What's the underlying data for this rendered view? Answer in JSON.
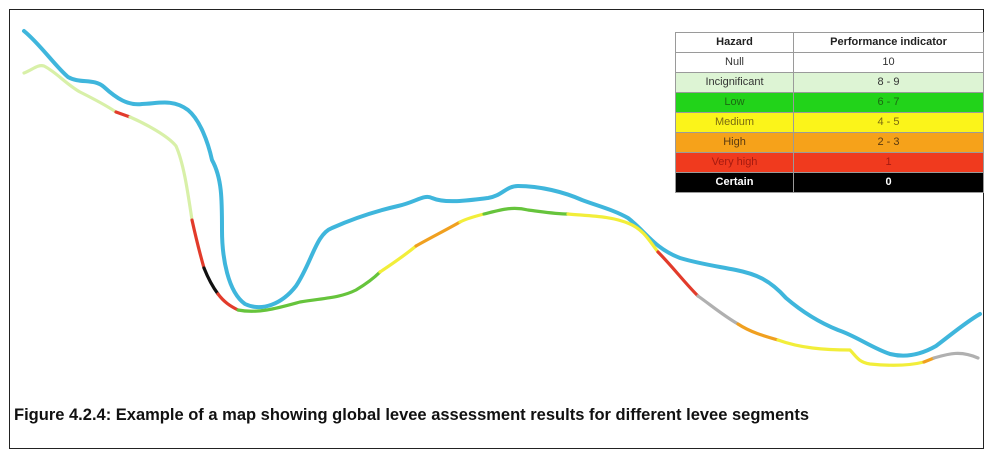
{
  "map": {
    "river_color": "#3fb6dc",
    "levee_colors": {
      "null": "#ffffff",
      "insignificant": "#d8f0a8",
      "low": "#66c43c",
      "medium": "#f2ee3a",
      "high": "#f0a020",
      "very_high": "#e23b2b",
      "certain": "#111111",
      "unassessed": "#b0b0b0"
    }
  },
  "legend": {
    "header": {
      "hazard": "Hazard",
      "performance": "Performance indicator"
    },
    "rows": [
      {
        "hazard": "Null",
        "indicator": "10",
        "bg": "#ffffff",
        "fg": "#333333"
      },
      {
        "hazard": "Incignificant",
        "indicator": "8 - 9",
        "bg": "#ddf4d4",
        "fg": "#333333"
      },
      {
        "hazard": "Low",
        "indicator": "6 - 7",
        "bg": "#22d31a",
        "fg": "#1c6a12"
      },
      {
        "hazard": "Medium",
        "indicator": "4 - 5",
        "bg": "#fbf41a",
        "fg": "#7a6a10"
      },
      {
        "hazard": "High",
        "indicator": "2 - 3",
        "bg": "#f6a21a",
        "fg": "#5a3a10"
      },
      {
        "hazard": "Very high",
        "indicator": "1",
        "bg": "#f03a1e",
        "fg": "#a51a10"
      },
      {
        "hazard": "Certain",
        "indicator": "0",
        "bg": "#000000",
        "fg": "#ffffff"
      }
    ]
  },
  "caption": "Figure 4.2.4: Example of a map showing global levee assessment results for different levee segments"
}
